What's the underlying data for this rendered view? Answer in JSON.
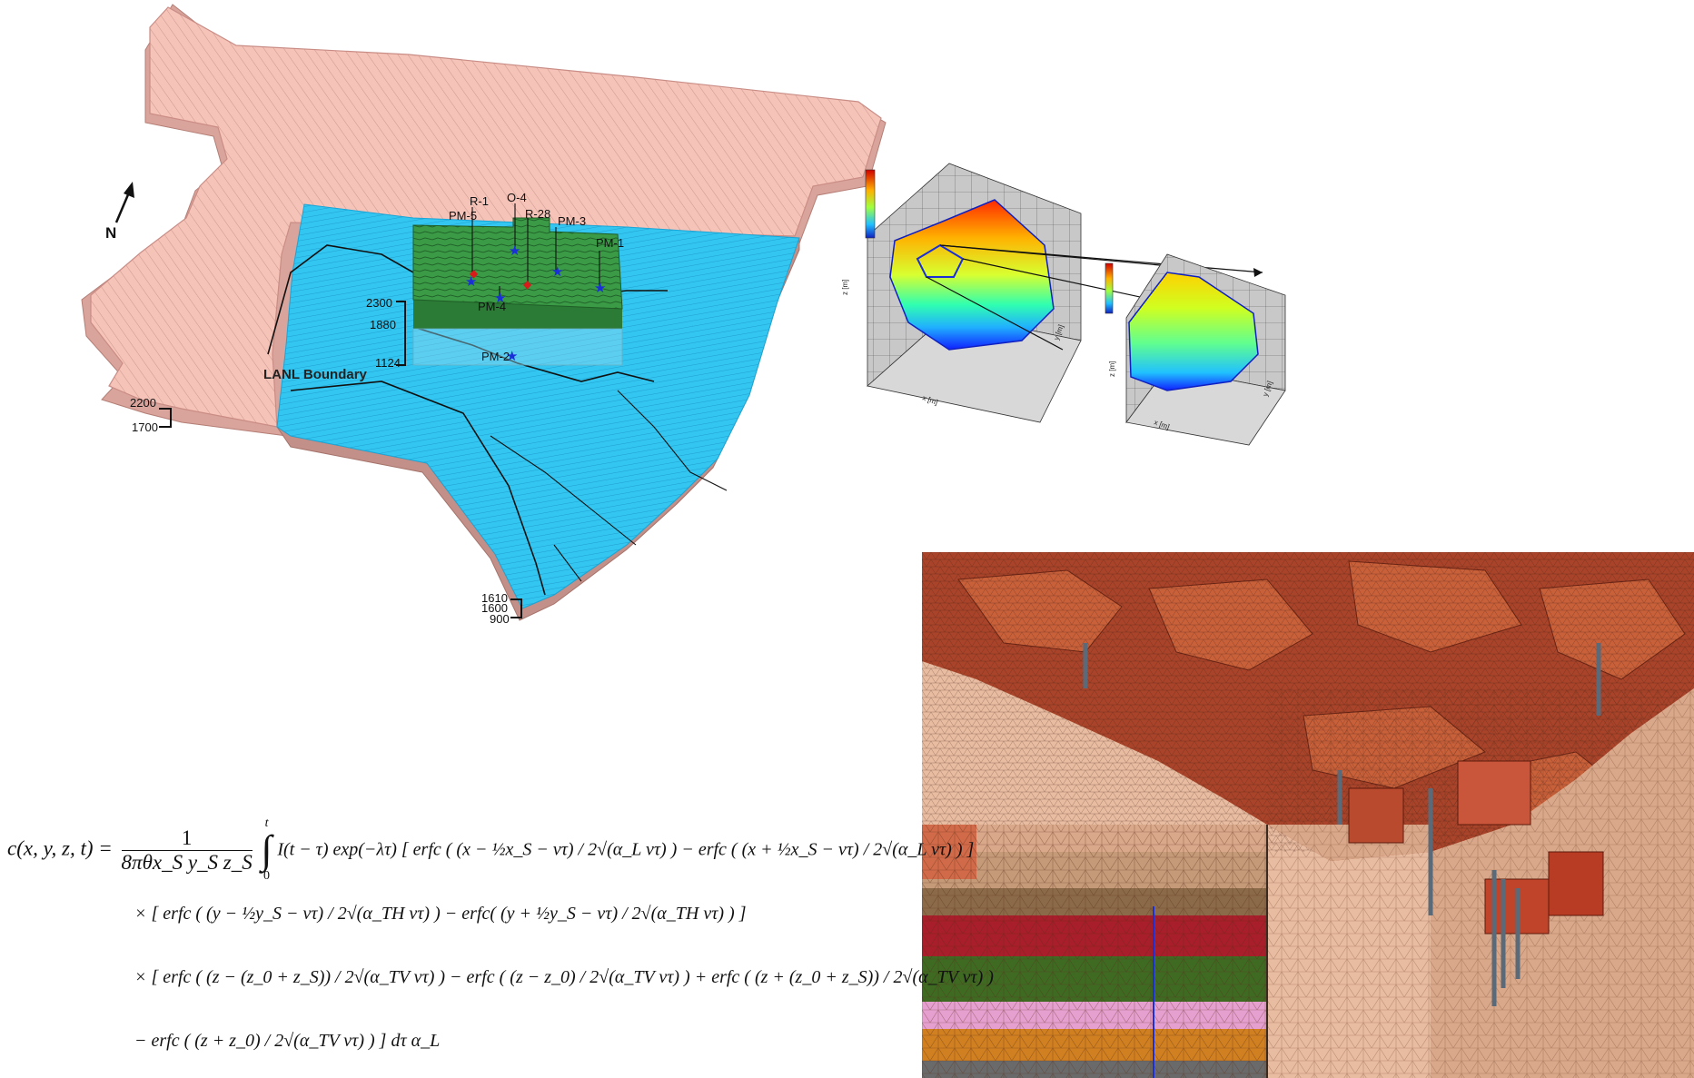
{
  "north_label": "N",
  "wells": {
    "r1": "R-1",
    "o4": "O-4",
    "r28": "R-28",
    "pm5": "PM-5",
    "pm3": "PM-3",
    "pm1": "PM-1",
    "pm4": "PM-4",
    "pm2": "PM-2"
  },
  "boundary_label": "LANL Boundary",
  "elevations": {
    "inner_top": "2300",
    "inner_mid": "1880",
    "inner_bottom": "1124",
    "left_top": "2200",
    "left_bottom": "1700",
    "right_top": "1610",
    "right_mid": "1600",
    "right_bottom": "900"
  },
  "plot_axes": {
    "z": "z [m]",
    "x": "x [m]",
    "y": "y [m]"
  },
  "equation": {
    "lhs": "c(x, y, z, t) =",
    "prefactor_num": "1",
    "prefactor_den": "8πθx_S y_S z_S",
    "integral_upper": "t",
    "integral_lower": "0",
    "line1_body": "I(t − τ) exp(−λτ) [ erfc ( (x − ½x_S − vτ) / 2√(α_L vτ) ) − erfc ( (x + ½x_S − vτ) / 2√(α_L vτ) ) ]",
    "line2": "× [ erfc ( (y − ½y_S − vτ) / 2√(α_TH vτ) ) − erfc( (y + ½y_S − vτ) / 2√(α_TH vτ) ) ]",
    "line3": "× [ erfc ( (z − (z_0 + z_S)) / 2√(α_TV vτ) ) − erfc ( (z − z_0) / 2√(α_TV vτ) ) + erfc ( (z + (z_0 + z_S)) / 2√(α_TV vτ) )",
    "line4": "− erfc ( (z + z_0) / 2√(α_TV vτ) ) ] dτ α_L"
  },
  "colors": {
    "regional_model": "#f6c3b8",
    "regional_edge": "#c98d86",
    "site_model": "#33c6f0",
    "site_model_dark": "#1aa5d6",
    "local_model": "#3a9a45",
    "local_model_dark": "#2b7a35",
    "well_marker": "#1a2fd8",
    "well_marker_red": "#d81a1a",
    "mesh_brown": "#b04a2c",
    "mesh_tan": "#d8a888"
  }
}
